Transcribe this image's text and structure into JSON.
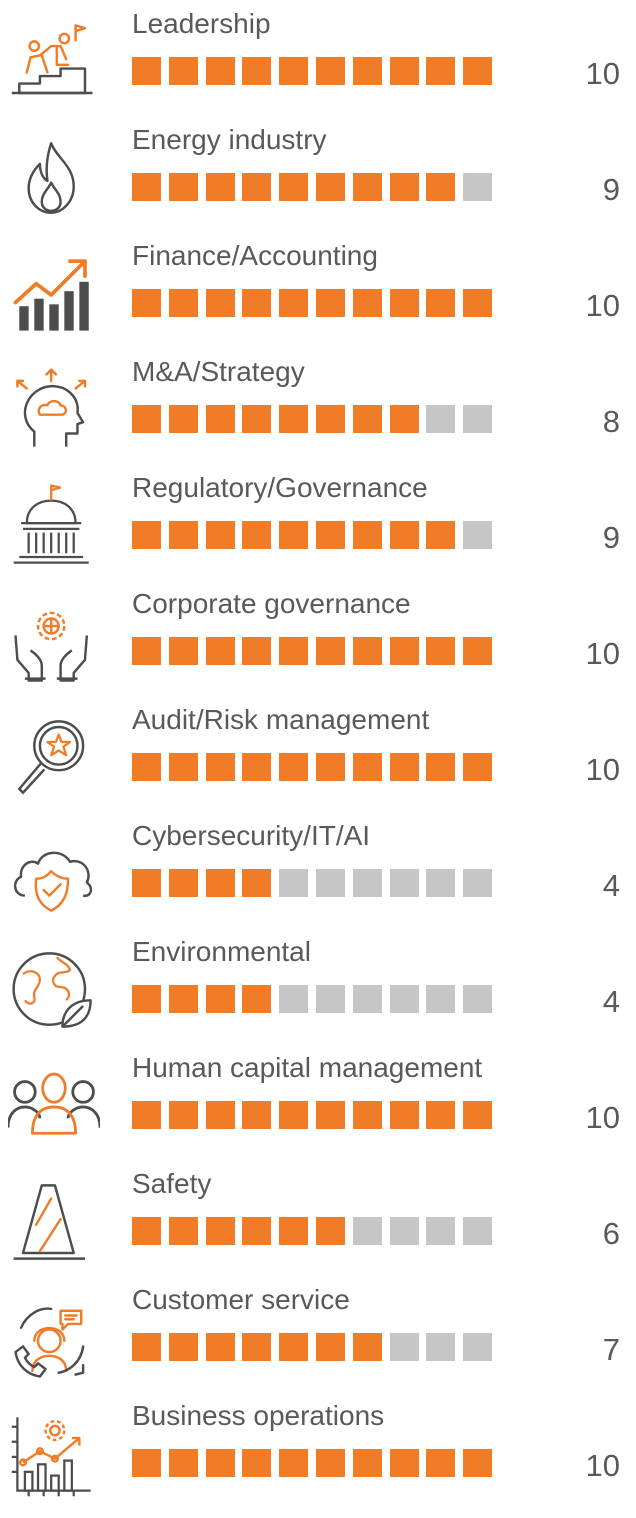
{
  "colors": {
    "filled": "#f07c28",
    "empty": "#c6c6c6",
    "icon_gray": "#4d4d4d",
    "icon_orange": "#f07c28"
  },
  "chart_data": {
    "type": "bar",
    "max_score": 10,
    "categories": [
      "Leadership",
      "Energy industry",
      "Finance/Accounting",
      "M&A/Strategy",
      "Regulatory/Governance",
      "Corporate governance",
      "Audit/Risk management",
      "Cybersecurity/IT/AI",
      "Environmental",
      "Human capital management",
      "Safety",
      "Customer service",
      "Business operations"
    ],
    "values": [
      10,
      9,
      10,
      8,
      9,
      10,
      10,
      4,
      4,
      10,
      6,
      7,
      10
    ]
  },
  "rows": [
    {
      "label": "Leadership",
      "score": "10",
      "icon": "leadership-steps-icon"
    },
    {
      "label": "Energy industry",
      "score": "9",
      "icon": "flame-icon"
    },
    {
      "label": "Finance/Accounting",
      "score": "10",
      "icon": "growth-chart-icon"
    },
    {
      "label": "M&A/Strategy",
      "score": "8",
      "icon": "head-idea-icon"
    },
    {
      "label": "Regulatory/Governance",
      "score": "9",
      "icon": "capitol-building-icon"
    },
    {
      "label": "Corporate governance",
      "score": "10",
      "icon": "hands-gear-icon"
    },
    {
      "label": "Audit/Risk management",
      "score": "10",
      "icon": "magnifier-star-icon"
    },
    {
      "label": "Cybersecurity/IT/AI",
      "score": "4",
      "icon": "cloud-shield-icon"
    },
    {
      "label": "Environmental",
      "score": "4",
      "icon": "globe-leaf-icon"
    },
    {
      "label": "Human capital management",
      "score": "10",
      "icon": "people-group-icon"
    },
    {
      "label": "Safety",
      "score": "6",
      "icon": "traffic-cone-icon"
    },
    {
      "label": "Customer service",
      "score": "7",
      "icon": "headset-agent-icon"
    },
    {
      "label": "Business operations",
      "score": "10",
      "icon": "operations-chart-icon"
    }
  ]
}
